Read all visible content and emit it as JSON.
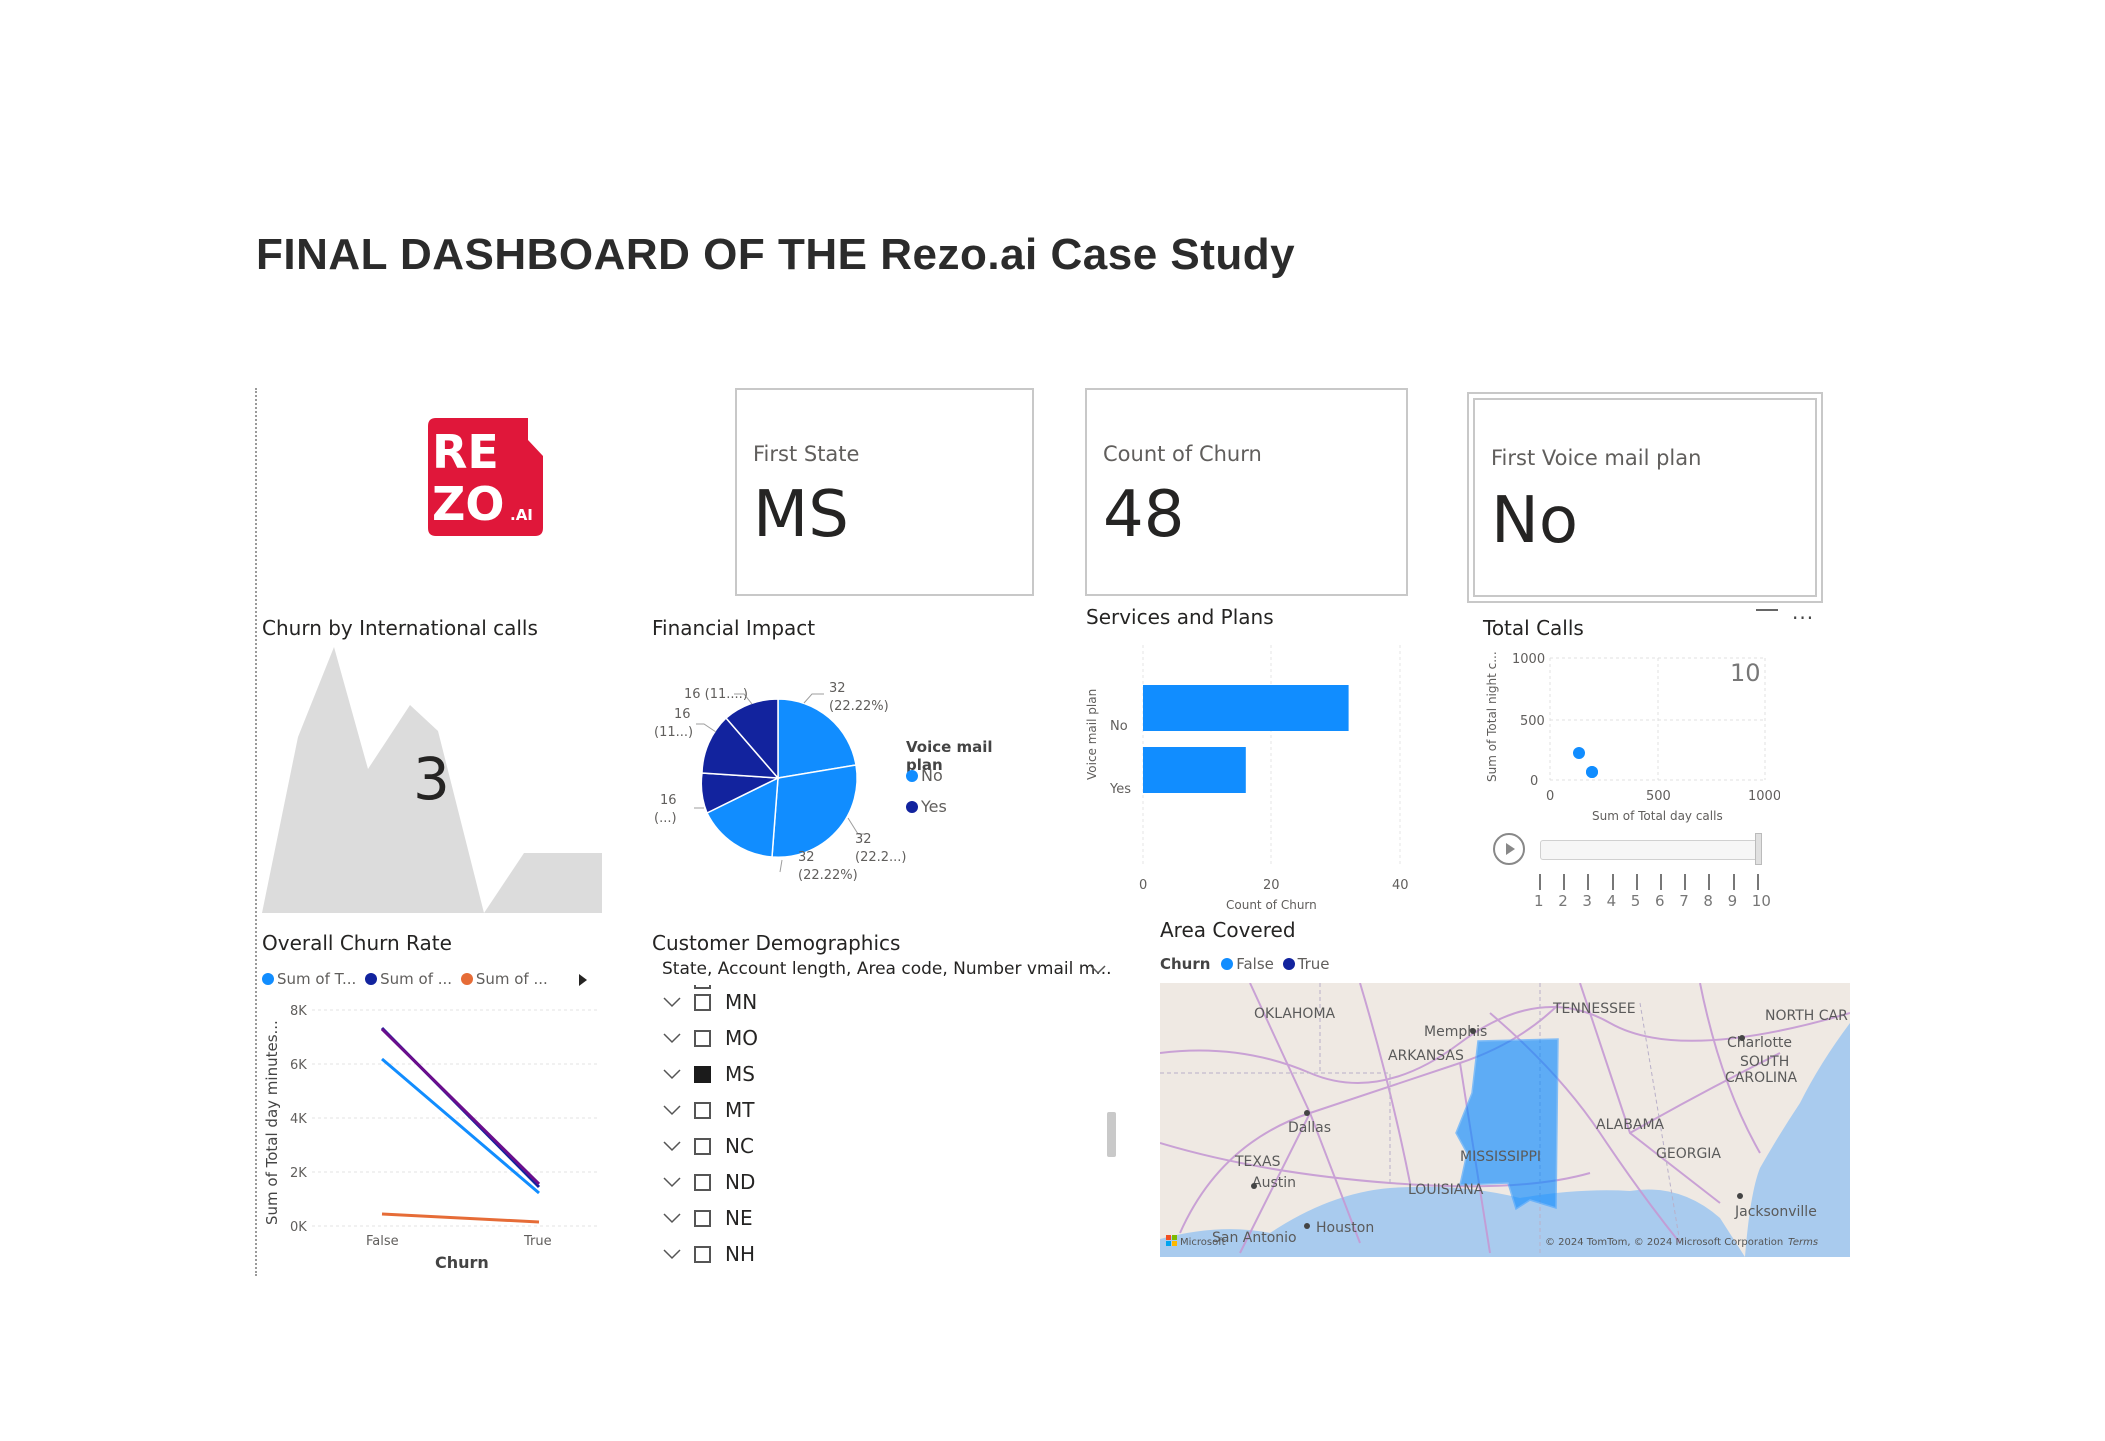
{
  "page": {
    "title": "FINAL DASHBOARD OF THE Rezo.ai Case Study"
  },
  "logo": {
    "line1": "RE",
    "line2": "ZO",
    "suffix": ".AI",
    "color": "#e0173a"
  },
  "cards": {
    "first_state": {
      "label": "First State",
      "value": "MS"
    },
    "count_churn": {
      "label": "Count of Churn",
      "value": "48"
    },
    "first_voicemail": {
      "label": "First Voice mail plan",
      "value": "No"
    }
  },
  "intl_calls": {
    "title": "Churn by International calls",
    "value": "3"
  },
  "financial": {
    "title": "Financial Impact",
    "legend_title": "Voice mail plan",
    "legend": [
      {
        "label": "No",
        "color": "#118dff"
      },
      {
        "label": "Yes",
        "color": "#12239e"
      }
    ],
    "labels": [
      {
        "line1": "32",
        "line2": "(22.22%)"
      },
      {
        "line1": "32",
        "line2": "(22.2...)"
      },
      {
        "line1": "32",
        "line2": "(22.22%)"
      },
      {
        "line1": "16",
        "line2": "(...)"
      },
      {
        "line1": "16",
        "line2": "(11...)"
      },
      {
        "line1": "16 (11....)",
        "line2": ""
      }
    ]
  },
  "services": {
    "title": "Services and Plans",
    "ylabel": "Voice mail plan",
    "xlabel": "Count of Churn",
    "categories": [
      "No",
      "Yes"
    ],
    "values": [
      32,
      16
    ],
    "ticks": [
      "0",
      "20",
      "40"
    ],
    "color": "#118dff"
  },
  "total_calls": {
    "title": "Total Calls",
    "play_value": "10",
    "xlabel": "Sum of Total day calls",
    "ylabel": "Sum of Total night c...",
    "xticks": [
      "0",
      "500",
      "1000"
    ],
    "yticks": [
      "1000",
      "500",
      "0"
    ],
    "timeline": [
      "1",
      "2",
      "3",
      "4",
      "5",
      "6",
      "7",
      "8",
      "9",
      "10"
    ]
  },
  "overall_churn": {
    "title": "Overall Churn Rate",
    "legend": [
      {
        "label": "Sum of T...",
        "color": "#118dff"
      },
      {
        "label": "Sum of ...",
        "color": "#12239e"
      },
      {
        "label": "Sum of ...",
        "color": "#e66c37"
      }
    ],
    "ylabel": "Sum of Total day minutes...",
    "xlabel": "Churn",
    "yticks": [
      "8K",
      "6K",
      "4K",
      "2K",
      "0K"
    ],
    "xticks": [
      "False",
      "True"
    ]
  },
  "demographics": {
    "title": "Customer Demographics",
    "dropdown": "State, Account length, Area code, Number vmail m...",
    "items": [
      {
        "label": "MN",
        "checked": false
      },
      {
        "label": "MO",
        "checked": false
      },
      {
        "label": "MS",
        "checked": true
      },
      {
        "label": "MT",
        "checked": false
      },
      {
        "label": "NC",
        "checked": false
      },
      {
        "label": "ND",
        "checked": false
      },
      {
        "label": "NE",
        "checked": false
      },
      {
        "label": "NH",
        "checked": false
      }
    ]
  },
  "area": {
    "title": "Area Covered",
    "legend_title": "Churn",
    "legend": [
      {
        "label": "False",
        "color": "#118dff"
      },
      {
        "label": "True",
        "color": "#12239e"
      }
    ],
    "places": [
      "TENNESSEE",
      "OKLAHOMA",
      "Memphis",
      "ARKANSAS",
      "NORTH CAR",
      "Charlotte",
      "SOUTH",
      "CAROLINA",
      "Dallas",
      "ALABAMA",
      "MISSISSIPPI",
      "TEXAS",
      "GEORGIA",
      "Austin",
      "LOUISIANA",
      "Houston",
      "San Antonio",
      "Jacksonville"
    ],
    "copyright": "© 2024 TomTom, © 2024 Microsoft Corporation",
    "terms": "Terms",
    "ms_logo_text": "Microsoft"
  }
}
